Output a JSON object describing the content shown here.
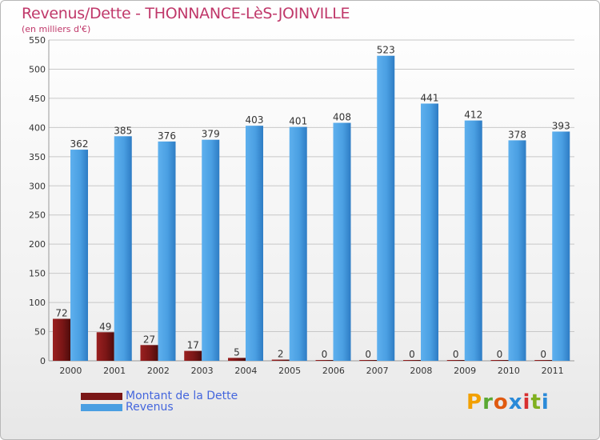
{
  "header": {
    "title": "Revenus/Dette - THONNANCE-LèS-JOINVILLE",
    "subtitle": "(en milliers d'€)"
  },
  "legend": [
    {
      "label": "Montant de la Dette",
      "color": "#7a1616"
    },
    {
      "label": "Revenus",
      "color": "#4a9fe2"
    }
  ],
  "logo": {
    "letters": [
      "P",
      "r",
      "o",
      "x",
      "i",
      "t",
      "i"
    ],
    "colors": [
      "#f2a000",
      "#5aa832",
      "#e05a10",
      "#2a8ad8",
      "#d83030",
      "#80b020",
      "#2a8ad8"
    ]
  },
  "chart_data": {
    "type": "bar",
    "title": "Revenus/Dette - THONNANCE-LèS-JOINVILLE",
    "ylabel": "(en milliers d'€)",
    "ylim": [
      0,
      550
    ],
    "yticks": [
      0,
      50,
      100,
      150,
      200,
      250,
      300,
      350,
      400,
      450,
      500,
      550
    ],
    "grid": true,
    "legend_position": "bottom-left",
    "categories": [
      "2000",
      "2001",
      "2002",
      "2003",
      "2004",
      "2005",
      "2006",
      "2007",
      "2008",
      "2009",
      "2010",
      "2011"
    ],
    "series": [
      {
        "name": "Montant de la Dette",
        "color": "#7a1616",
        "values": [
          72,
          49,
          27,
          17,
          5,
          2,
          0,
          0,
          0,
          0,
          0,
          0
        ]
      },
      {
        "name": "Revenus",
        "color": "#4a9fe2",
        "values": [
          362,
          385,
          376,
          379,
          403,
          401,
          408,
          523,
          441,
          412,
          378,
          393
        ]
      }
    ]
  }
}
